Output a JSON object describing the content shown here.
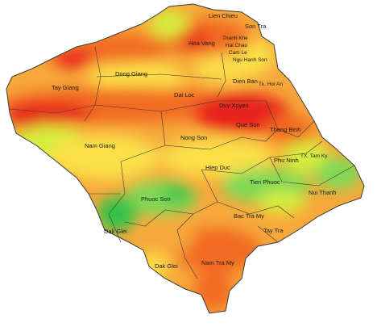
{
  "map": {
    "subject": "Quang Nam and Da Nang administrative districts heat map",
    "colors": {
      "ocean": "#ffffff",
      "very_high": "#e8201c",
      "high": "#f26a21",
      "medium_high": "#f7a83a",
      "medium": "#fbe04a",
      "medium_low": "#d6ee3c",
      "low": "#7ed957",
      "very_low": "#33c24a",
      "border": "#3a3a3a"
    },
    "districts": [
      "Lien Chieu",
      "Son Tra",
      "Thanh Khe",
      "Hai Chau",
      "Cam Le",
      "Ngu Hanh Son",
      "Hoa Vang",
      "Dong Giang",
      "Dien Ban",
      "Tk. Hoi An",
      "Tay Giang",
      "Dai Loc",
      "Duy Xuyen",
      "Que Son",
      "Thang Binh",
      "Nong Son",
      "Nam Giang",
      "TX. Tam Ky",
      "Phu Ninh",
      "Hiep Duc",
      "Tien Phuoc",
      "Nui Thanh",
      "Phuoc Son",
      "Bac Tra My",
      "Dak Glei",
      "Tay Tra",
      "Dak Glei",
      "Nam Tra My"
    ]
  }
}
